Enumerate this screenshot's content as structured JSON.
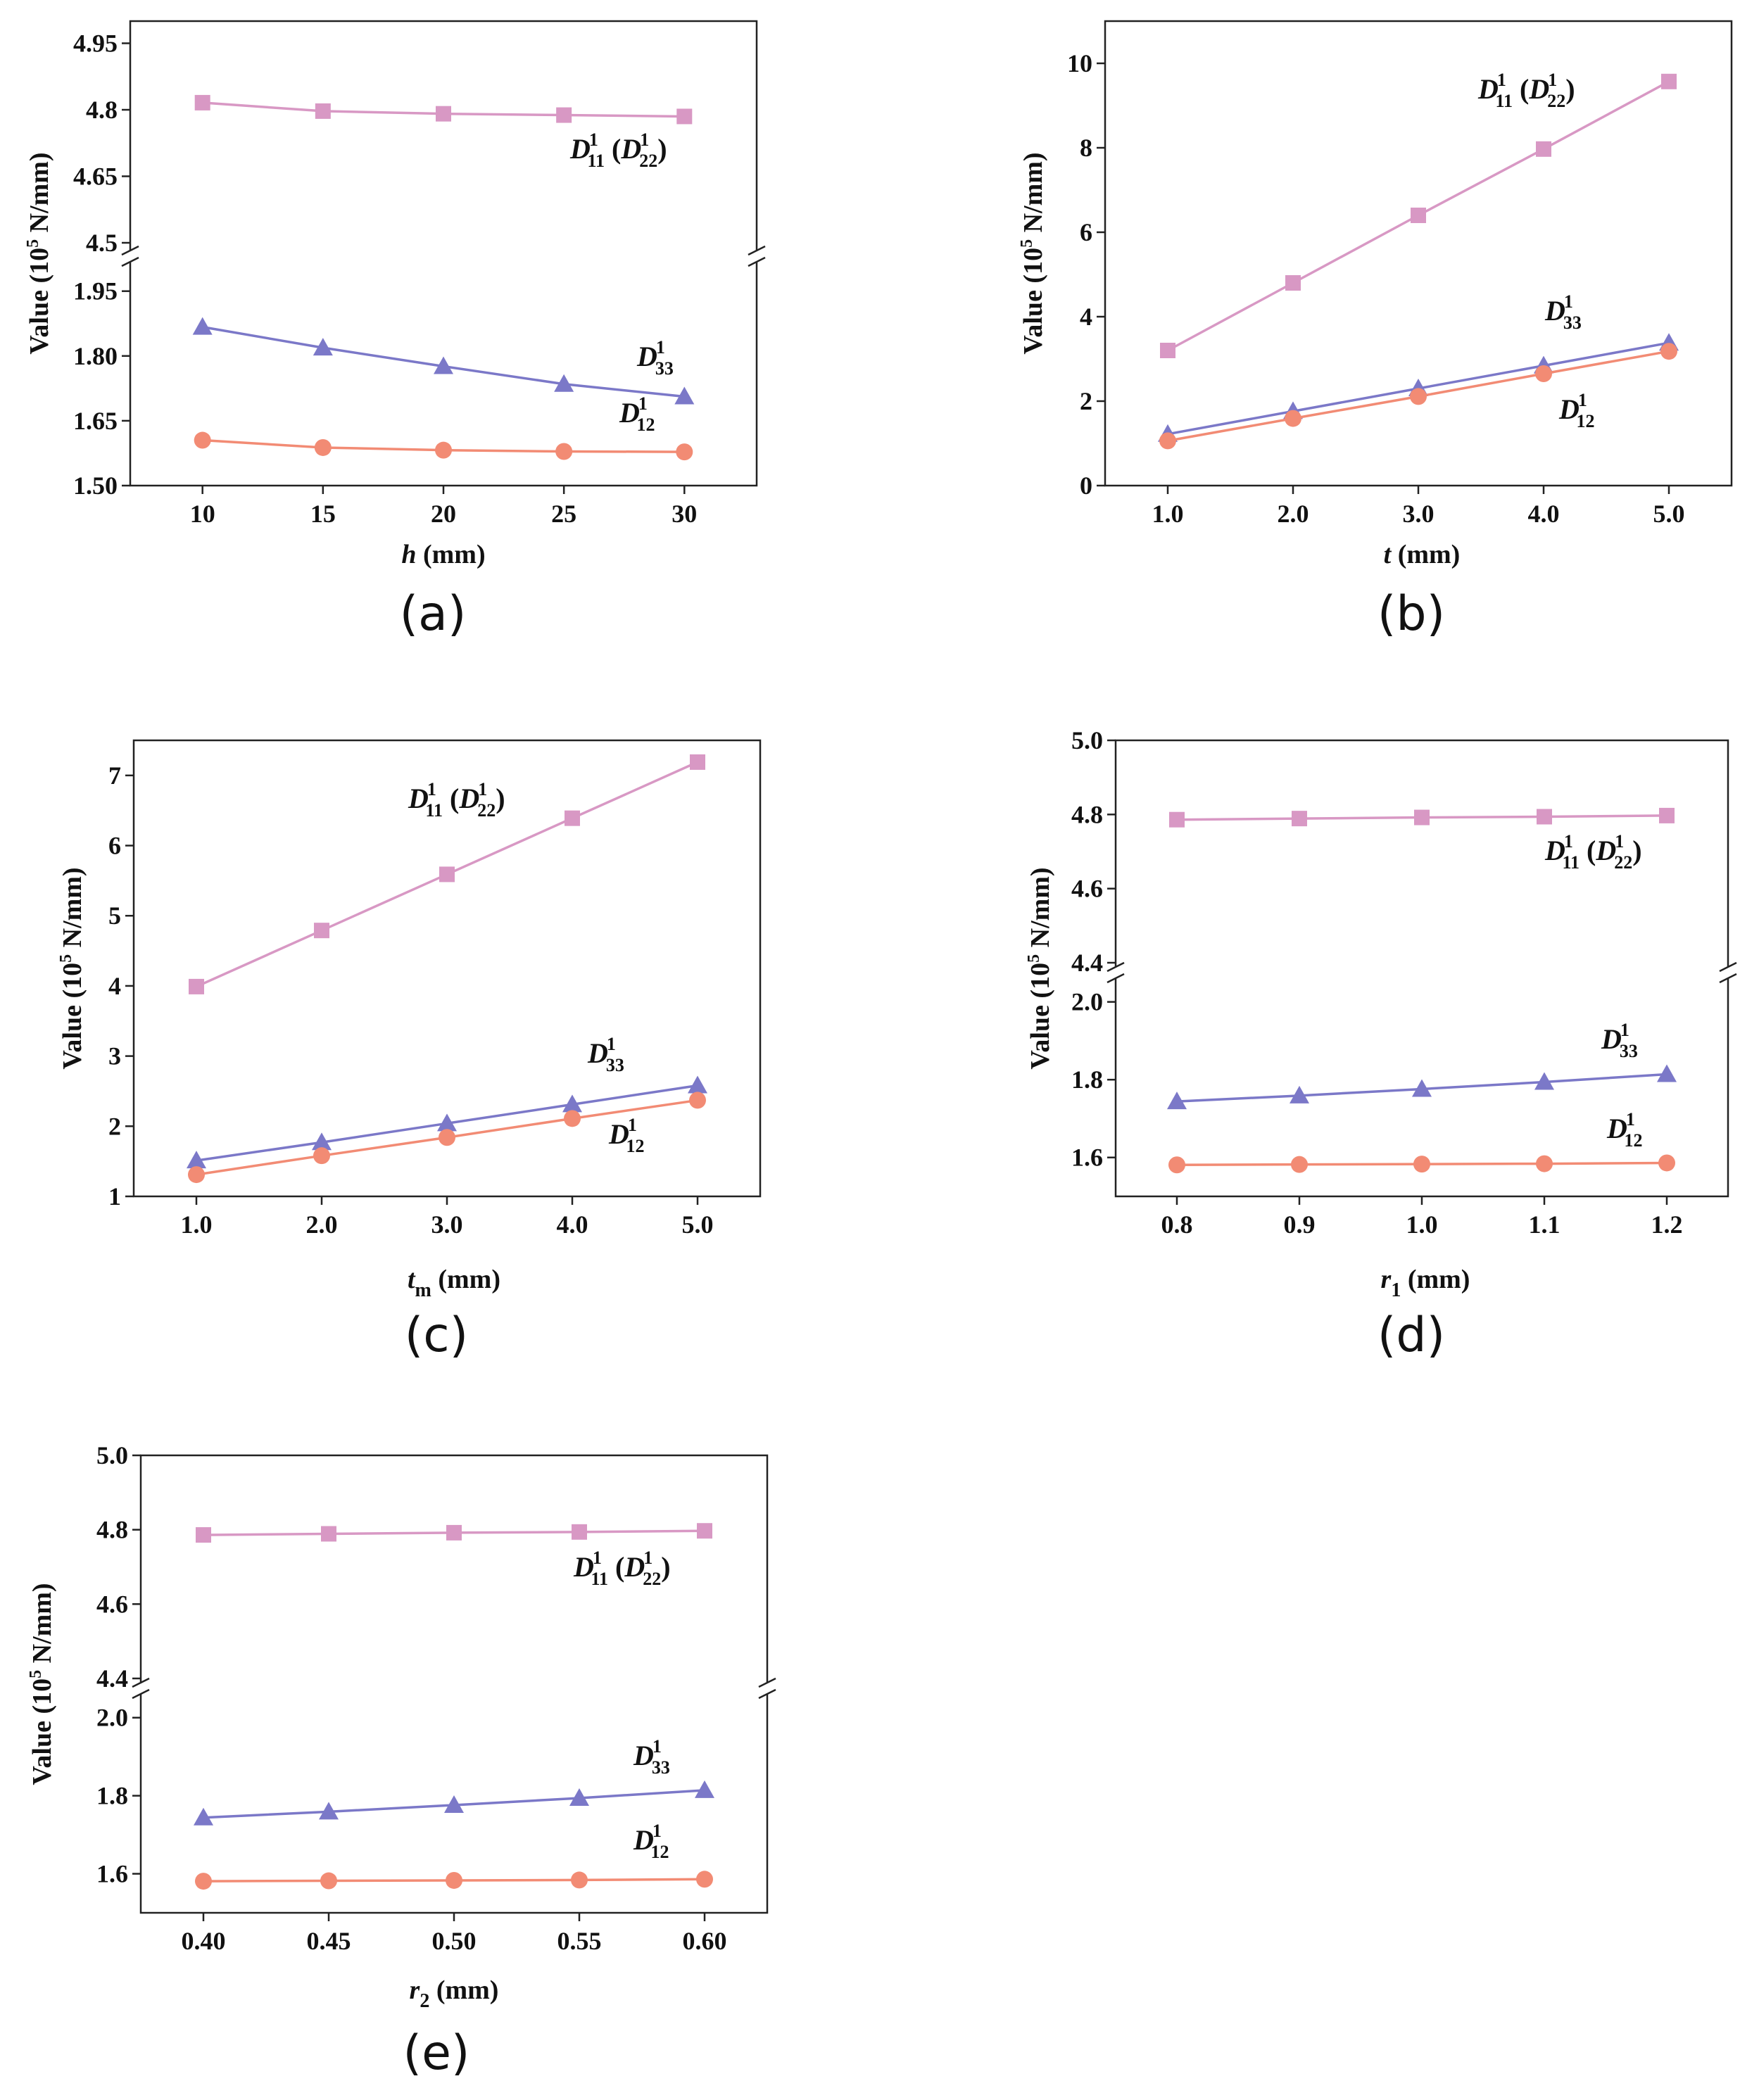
{
  "figure": {
    "colors": {
      "d11": "#d898c4",
      "d33": "#7b78c8",
      "d12": "#f28b74",
      "axis": "#222222"
    },
    "ylabel": {
      "prefix": "Value (10",
      "exp": "5",
      "suffix": " N/mm)"
    },
    "series_names": {
      "d11": {
        "main": "D",
        "sub": "11",
        "sup": "1",
        "paren_main": "D",
        "paren_sub": "22",
        "paren_sup": "1"
      },
      "d33": {
        "main": "D",
        "sub": "33",
        "sup": "1"
      },
      "d12": {
        "main": "D",
        "sub": "12",
        "sup": "1"
      }
    }
  },
  "chart_data": [
    {
      "panel": "(a)",
      "type": "line",
      "xlabel": {
        "var": "h",
        "sub": "",
        "unit": " (mm)"
      },
      "x": [
        10,
        15,
        20,
        25,
        30
      ],
      "x_ticks": [
        "10",
        "15",
        "20",
        "25",
        "30"
      ],
      "xlim": [
        7,
        33
      ],
      "broken_axis": true,
      "upper_ylim": [
        4.5,
        5.0
      ],
      "upper_ticks": [
        "4.95",
        "4.8",
        "4.65",
        "4.5"
      ],
      "upper_tick_values": [
        4.95,
        4.8,
        4.65,
        4.5
      ],
      "lower_ylim": [
        1.5,
        2.0
      ],
      "lower_ticks": [
        "1.95",
        "1.80",
        "1.65",
        "1.50"
      ],
      "lower_tick_values": [
        1.95,
        1.8,
        1.65,
        1.5
      ],
      "series": [
        {
          "key": "d11",
          "marker": "square",
          "values": [
            4.816,
            4.797,
            4.791,
            4.788,
            4.785
          ]
        },
        {
          "key": "d33",
          "marker": "triangle",
          "values": [
            1.867,
            1.819,
            1.776,
            1.735,
            1.706
          ]
        },
        {
          "key": "d12",
          "marker": "circle",
          "values": [
            1.605,
            1.588,
            1.582,
            1.579,
            1.578
          ]
        }
      ]
    },
    {
      "panel": "(b)",
      "type": "line",
      "xlabel": {
        "var": "t",
        "sub": "",
        "unit": " (mm)"
      },
      "x": [
        1.0,
        2.0,
        3.0,
        4.0,
        5.0
      ],
      "x_ticks": [
        "1.0",
        "2.0",
        "3.0",
        "4.0",
        "5.0"
      ],
      "xlim": [
        0.5,
        5.5
      ],
      "broken_axis": false,
      "ylim": [
        0,
        11
      ],
      "y_ticks": [
        "0",
        "2",
        "4",
        "6",
        "8",
        "10"
      ],
      "y_tick_values": [
        0,
        2,
        4,
        6,
        8,
        10
      ],
      "series": [
        {
          "key": "d11",
          "marker": "square",
          "values": [
            3.2,
            4.8,
            6.4,
            7.97,
            9.57
          ]
        },
        {
          "key": "d33",
          "marker": "triangle",
          "values": [
            1.22,
            1.76,
            2.3,
            2.84,
            3.38
          ]
        },
        {
          "key": "d12",
          "marker": "circle",
          "values": [
            1.06,
            1.59,
            2.11,
            2.65,
            3.18
          ]
        }
      ]
    },
    {
      "panel": "(c)",
      "type": "line",
      "xlabel": {
        "var": "t",
        "sub": "m",
        "unit": " (mm)"
      },
      "x": [
        1.0,
        2.0,
        3.0,
        4.0,
        5.0
      ],
      "x_ticks": [
        "1.0",
        "2.0",
        "3.0",
        "4.0",
        "5.0"
      ],
      "xlim": [
        0.5,
        5.5
      ],
      "broken_axis": false,
      "ylim": [
        1,
        7.5
      ],
      "y_ticks": [
        "1",
        "2",
        "3",
        "4",
        "5",
        "6",
        "7"
      ],
      "y_tick_values": [
        1,
        2,
        3,
        4,
        5,
        6,
        7
      ],
      "series": [
        {
          "key": "d11",
          "marker": "square",
          "values": [
            3.99,
            4.79,
            5.59,
            6.39,
            7.19
          ]
        },
        {
          "key": "d33",
          "marker": "triangle",
          "values": [
            1.51,
            1.77,
            2.04,
            2.31,
            2.58
          ]
        },
        {
          "key": "d12",
          "marker": "circle",
          "values": [
            1.31,
            1.58,
            1.84,
            2.11,
            2.37
          ]
        }
      ]
    },
    {
      "panel": "(d)",
      "type": "line",
      "xlabel": {
        "var": "r",
        "sub": "1",
        "unit": " (mm)"
      },
      "x": [
        0.8,
        0.9,
        1.0,
        1.1,
        1.2
      ],
      "x_ticks": [
        "0.8",
        "0.9",
        "1.0",
        "1.1",
        "1.2"
      ],
      "xlim": [
        0.75,
        1.25
      ],
      "broken_axis": true,
      "upper_ylim": [
        4.4,
        5.0
      ],
      "upper_ticks": [
        "5.0",
        "4.8",
        "4.6",
        "4.4"
      ],
      "upper_tick_values": [
        5.0,
        4.8,
        4.6,
        4.4
      ],
      "lower_ylim": [
        1.5,
        2.05
      ],
      "lower_ticks": [
        "2.0",
        "1.8",
        "1.6"
      ],
      "lower_tick_values": [
        2.0,
        1.8,
        1.6
      ],
      "series": [
        {
          "key": "d11",
          "marker": "square",
          "values": [
            4.786,
            4.789,
            4.792,
            4.794,
            4.797
          ]
        },
        {
          "key": "d33",
          "marker": "triangle",
          "values": [
            1.744,
            1.759,
            1.776,
            1.794,
            1.814
          ]
        },
        {
          "key": "d12",
          "marker": "circle",
          "values": [
            1.581,
            1.582,
            1.583,
            1.584,
            1.586
          ]
        }
      ]
    },
    {
      "panel": "(e)",
      "type": "line",
      "xlabel": {
        "var": "r",
        "sub": "2",
        "unit": " (mm)"
      },
      "x": [
        0.4,
        0.45,
        0.5,
        0.55,
        0.6
      ],
      "x_ticks": [
        "0.40",
        "0.45",
        "0.50",
        "0.55",
        "0.60"
      ],
      "xlim": [
        0.375,
        0.625
      ],
      "broken_axis": true,
      "upper_ylim": [
        4.4,
        5.0
      ],
      "upper_ticks": [
        "5.0",
        "4.8",
        "4.6",
        "4.4"
      ],
      "upper_tick_values": [
        5.0,
        4.8,
        4.6,
        4.4
      ],
      "lower_ylim": [
        1.5,
        2.05
      ],
      "lower_ticks": [
        "2.0",
        "1.8",
        "1.6"
      ],
      "lower_tick_values": [
        2.0,
        1.8,
        1.6
      ],
      "series": [
        {
          "key": "d11",
          "marker": "square",
          "values": [
            4.786,
            4.789,
            4.792,
            4.794,
            4.797
          ]
        },
        {
          "key": "d33",
          "marker": "triangle",
          "values": [
            1.744,
            1.759,
            1.776,
            1.794,
            1.814
          ]
        },
        {
          "key": "d12",
          "marker": "circle",
          "values": [
            1.581,
            1.582,
            1.583,
            1.584,
            1.586
          ]
        }
      ]
    }
  ]
}
